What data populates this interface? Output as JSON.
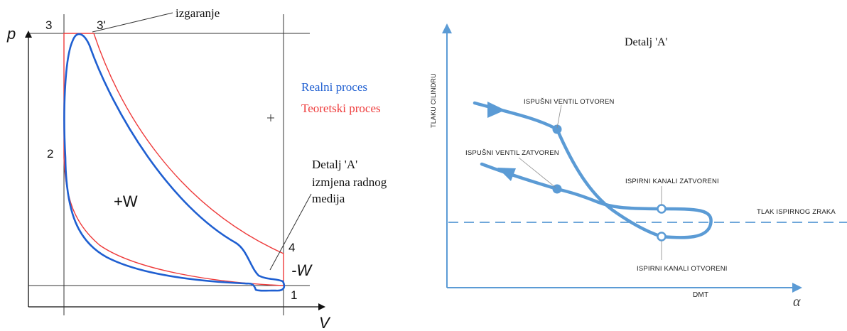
{
  "left_diagram": {
    "axis_y": "p",
    "axis_x": "V",
    "points": {
      "p3": "3",
      "p3prime": "3'",
      "p2": "2",
      "p4": "4",
      "p1": "1"
    },
    "izgaranje": "izgaranje",
    "legend_real": "Realni proces",
    "legend_teor": "Teoretski proces",
    "plus_w": "+W",
    "minus_w": "-W",
    "detalj_line1": "Detalj 'A'",
    "detalj_line2": "izmjena radnog",
    "detalj_line3": "medija",
    "colors": {
      "real": "#1f5fd1",
      "teor": "#ee3b3b"
    }
  },
  "right_diagram": {
    "title": "Detalj 'A'",
    "y_axis_label": "TLAKU CILINDRU",
    "x_axis_label": "DMT",
    "alpha": "α",
    "ispusni_otvoren": "ISPUŠNI VENTIL OTVOREN",
    "ispusni_zatvoren": "ISPUŠNI VENTIL ZATVOREN",
    "ispirni_zatvoreni": "ISPIRNI KANALI ZATVORENI",
    "ispirni_otvoreni": "ISPIRNI KANALI OTVORENI",
    "tlak_ispirnog": "TLAK ISPIRNOG ZRAKA",
    "color": "#5b9bd5"
  }
}
